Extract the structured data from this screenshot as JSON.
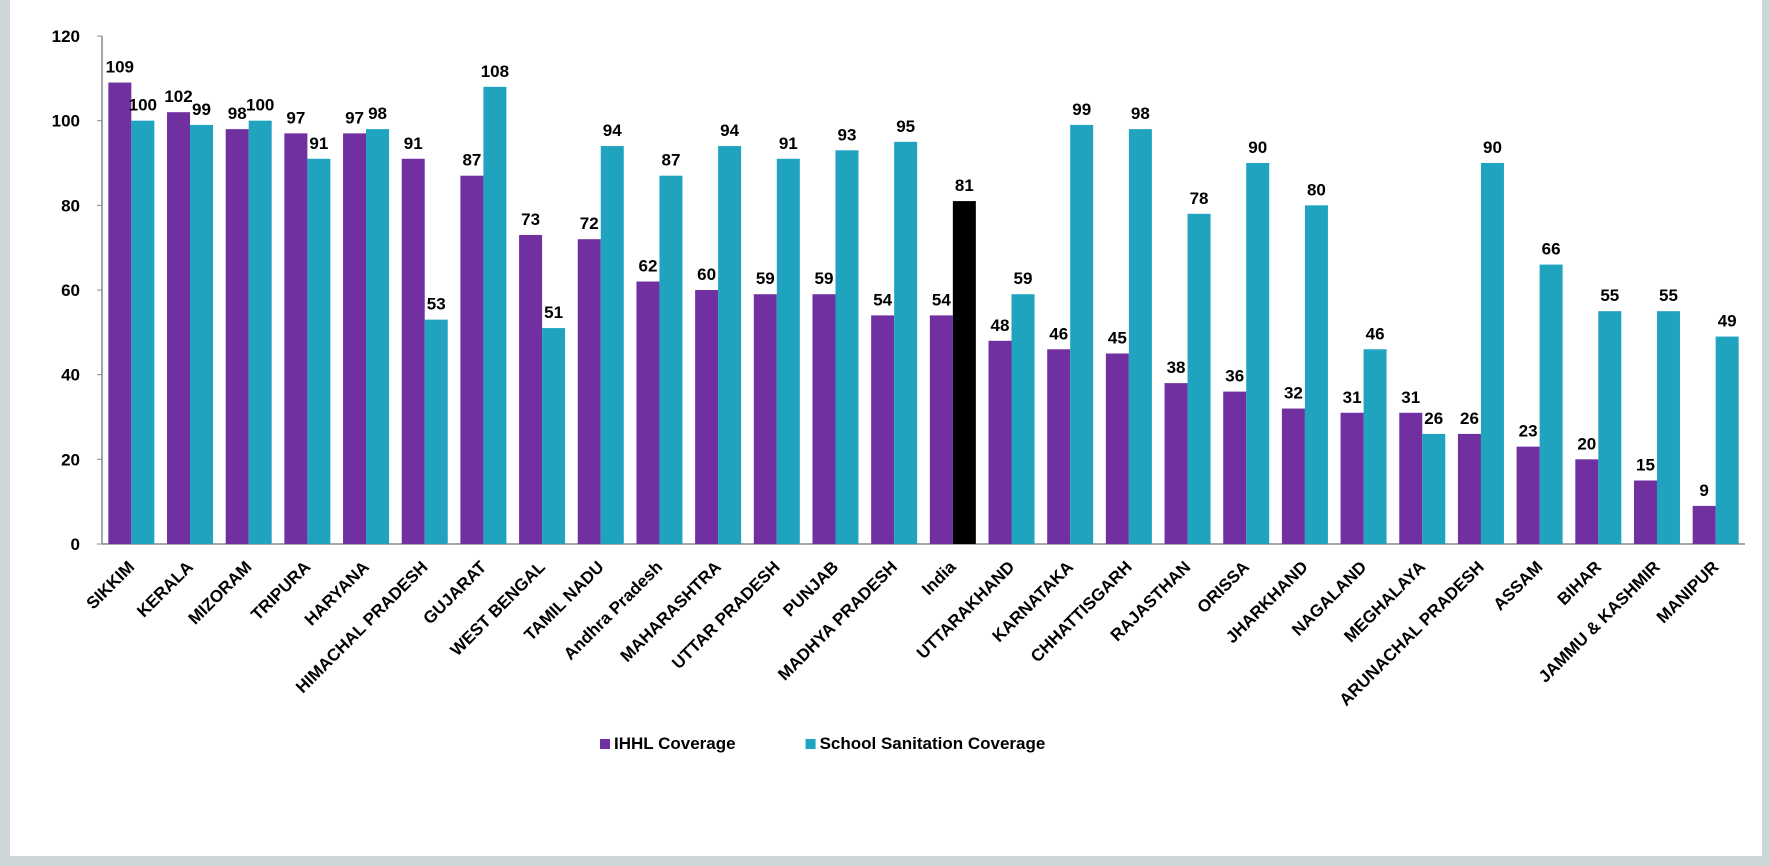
{
  "chart_data": {
    "type": "bar",
    "categories": [
      "SIKKIM",
      "KERALA",
      "MIZORAM",
      "TRIPURA",
      "HARYANA",
      "HIMACHAL PRADESH",
      "GUJARAT",
      "WEST BENGAL",
      "TAMIL NADU",
      "Andhra Pradesh",
      "MAHARASHTRA",
      "UTTAR PRADESH",
      "PUNJAB",
      "MADHYA PRADESH",
      "India",
      "UTTARAKHAND",
      "KARNATAKA",
      "CHHATTISGARH",
      "RAJASTHAN",
      "ORISSA",
      "JHARKHAND",
      "NAGALAND",
      "MEGHALAYA",
      "ARUNACHAL PRADESH",
      "ASSAM",
      "BIHAR",
      "JAMMU & KASHMIR",
      "MANIPUR"
    ],
    "series": [
      {
        "name": "IHHL Coverage",
        "color": "#7030a0",
        "values": [
          109,
          102,
          98,
          97,
          97,
          91,
          87,
          73,
          72,
          62,
          60,
          59,
          59,
          54,
          54,
          48,
          46,
          45,
          38,
          36,
          32,
          31,
          31,
          26,
          23,
          20,
          15,
          9
        ]
      },
      {
        "name": "School Sanitation Coverage",
        "color": "#1fa3bf",
        "values": [
          100,
          99,
          100,
          91,
          98,
          53,
          108,
          51,
          94,
          87,
          94,
          91,
          93,
          95,
          81,
          59,
          99,
          98,
          78,
          90,
          80,
          46,
          26,
          90,
          66,
          55,
          55,
          49
        ]
      }
    ],
    "highlight_category": "India",
    "highlight_color": "#000000",
    "ylim": [
      0,
      120
    ],
    "yticks": [
      0,
      20,
      40,
      60,
      80,
      100,
      120
    ],
    "grid": false,
    "legend": "bottom"
  }
}
